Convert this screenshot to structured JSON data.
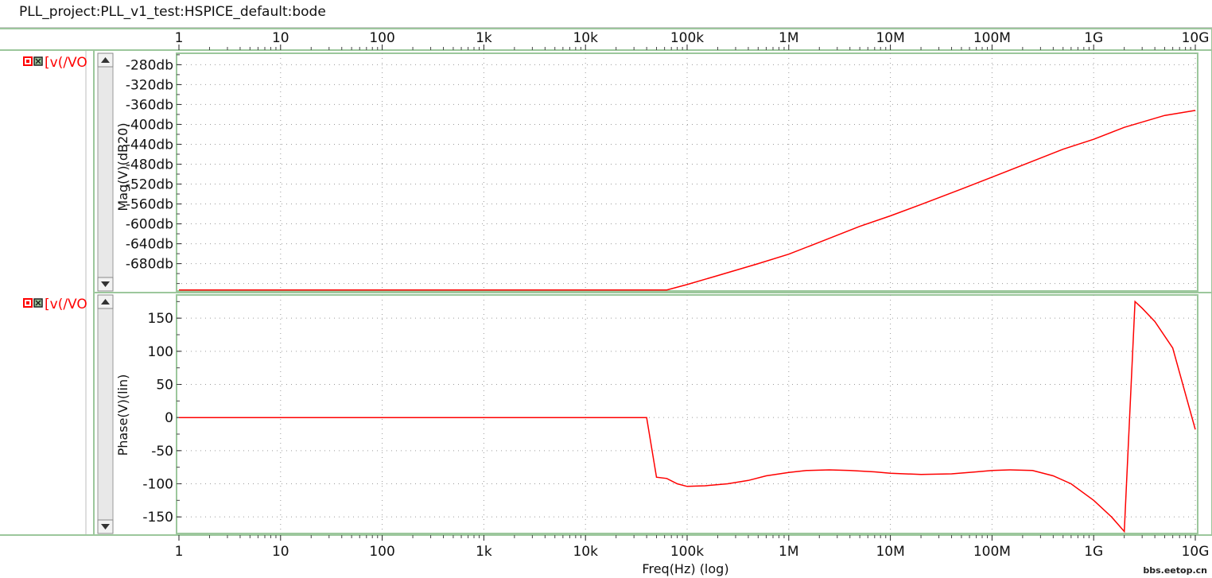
{
  "window": {
    "title": "PLL_project:PLL_v1_test:HSPICE_default:bode"
  },
  "colors": {
    "trace": "#ff0000",
    "frame": "#9cc79c",
    "grid": "#9a9a9a"
  },
  "icons": [
    "trace-visible-icon",
    "trace-select-icon",
    "scroll-up-icon",
    "scroll-down-icon"
  ],
  "watermark": "bbs.eetop.cn",
  "chart_data": [
    {
      "type": "line",
      "name": "magnitude",
      "legend": "[v(/VO",
      "xscale": "log",
      "xlabel": "Freq(Hz) (log)",
      "xlim": [
        1,
        10000000000
      ],
      "x_ticks": [
        1,
        10,
        100,
        1000,
        10000,
        100000,
        1000000,
        10000000,
        100000000,
        1000000000,
        10000000000
      ],
      "x_tick_labels": [
        "1",
        "10",
        "100",
        "1k",
        "10k",
        "100k",
        "1M",
        "10M",
        "100M",
        "1G",
        "10G"
      ],
      "ylabel": "Mag(V)(dB20)",
      "ylim": [
        -735,
        -257
      ],
      "y_ticks": [
        -280,
        -320,
        -360,
        -400,
        -440,
        -480,
        -520,
        -560,
        -600,
        -640,
        -680
      ],
      "y_tick_labels": [
        "-280db",
        "-320db",
        "-360db",
        "-400db",
        "-440db",
        "-480db",
        "-520db",
        "-560db",
        "-600db",
        "-640db",
        "-680db"
      ],
      "grid": true,
      "series": [
        {
          "x": [
            1,
            63000,
            100000,
            200000,
            500000,
            1000000,
            2000000,
            5000000,
            10000000,
            20000000,
            50000000,
            100000000,
            200000000,
            500000000,
            1000000000,
            2000000000,
            5000000000,
            10000000000
          ],
          "y": [
            -733,
            -733,
            -722,
            -704,
            -680,
            -661,
            -637,
            -605,
            -584,
            -561,
            -530,
            -506,
            -482,
            -450,
            -430,
            -406,
            -382,
            -372
          ]
        }
      ]
    },
    {
      "type": "line",
      "name": "phase",
      "legend": "[v(/VO",
      "xscale": "log",
      "xlabel": "Freq(Hz) (log)",
      "xlim": [
        1,
        10000000000
      ],
      "ylabel": "Phase(V)(lin)",
      "ylim": [
        -175,
        185
      ],
      "y_ticks": [
        150,
        100,
        50,
        0,
        -50,
        -100,
        -150
      ],
      "y_tick_labels": [
        "150",
        "100",
        "50",
        "0",
        "-50",
        "-100",
        "-150"
      ],
      "grid": true,
      "series": [
        {
          "x": [
            1,
            40000,
            50000,
            63000,
            80000,
            100000,
            150000,
            250000,
            400000,
            600000,
            1000000,
            1500000,
            2500000,
            4000000,
            7000000,
            10000000,
            20000000,
            40000000,
            70000000,
            100000000,
            150000000,
            250000000,
            400000000,
            600000000,
            1000000000,
            1500000000,
            2000000000,
            2550000000,
            3000000000,
            4000000000,
            6000000000,
            10000000000
          ],
          "y": [
            0,
            0,
            -90,
            -92,
            -100,
            -104,
            -103,
            -100,
            -95,
            -88,
            -83,
            -80,
            -79,
            -80,
            -82,
            -84,
            -86,
            -85,
            -82,
            -80,
            -79,
            -80,
            -88,
            -100,
            -125,
            -150,
            -172,
            175,
            165,
            145,
            105,
            -18
          ]
        }
      ]
    }
  ]
}
